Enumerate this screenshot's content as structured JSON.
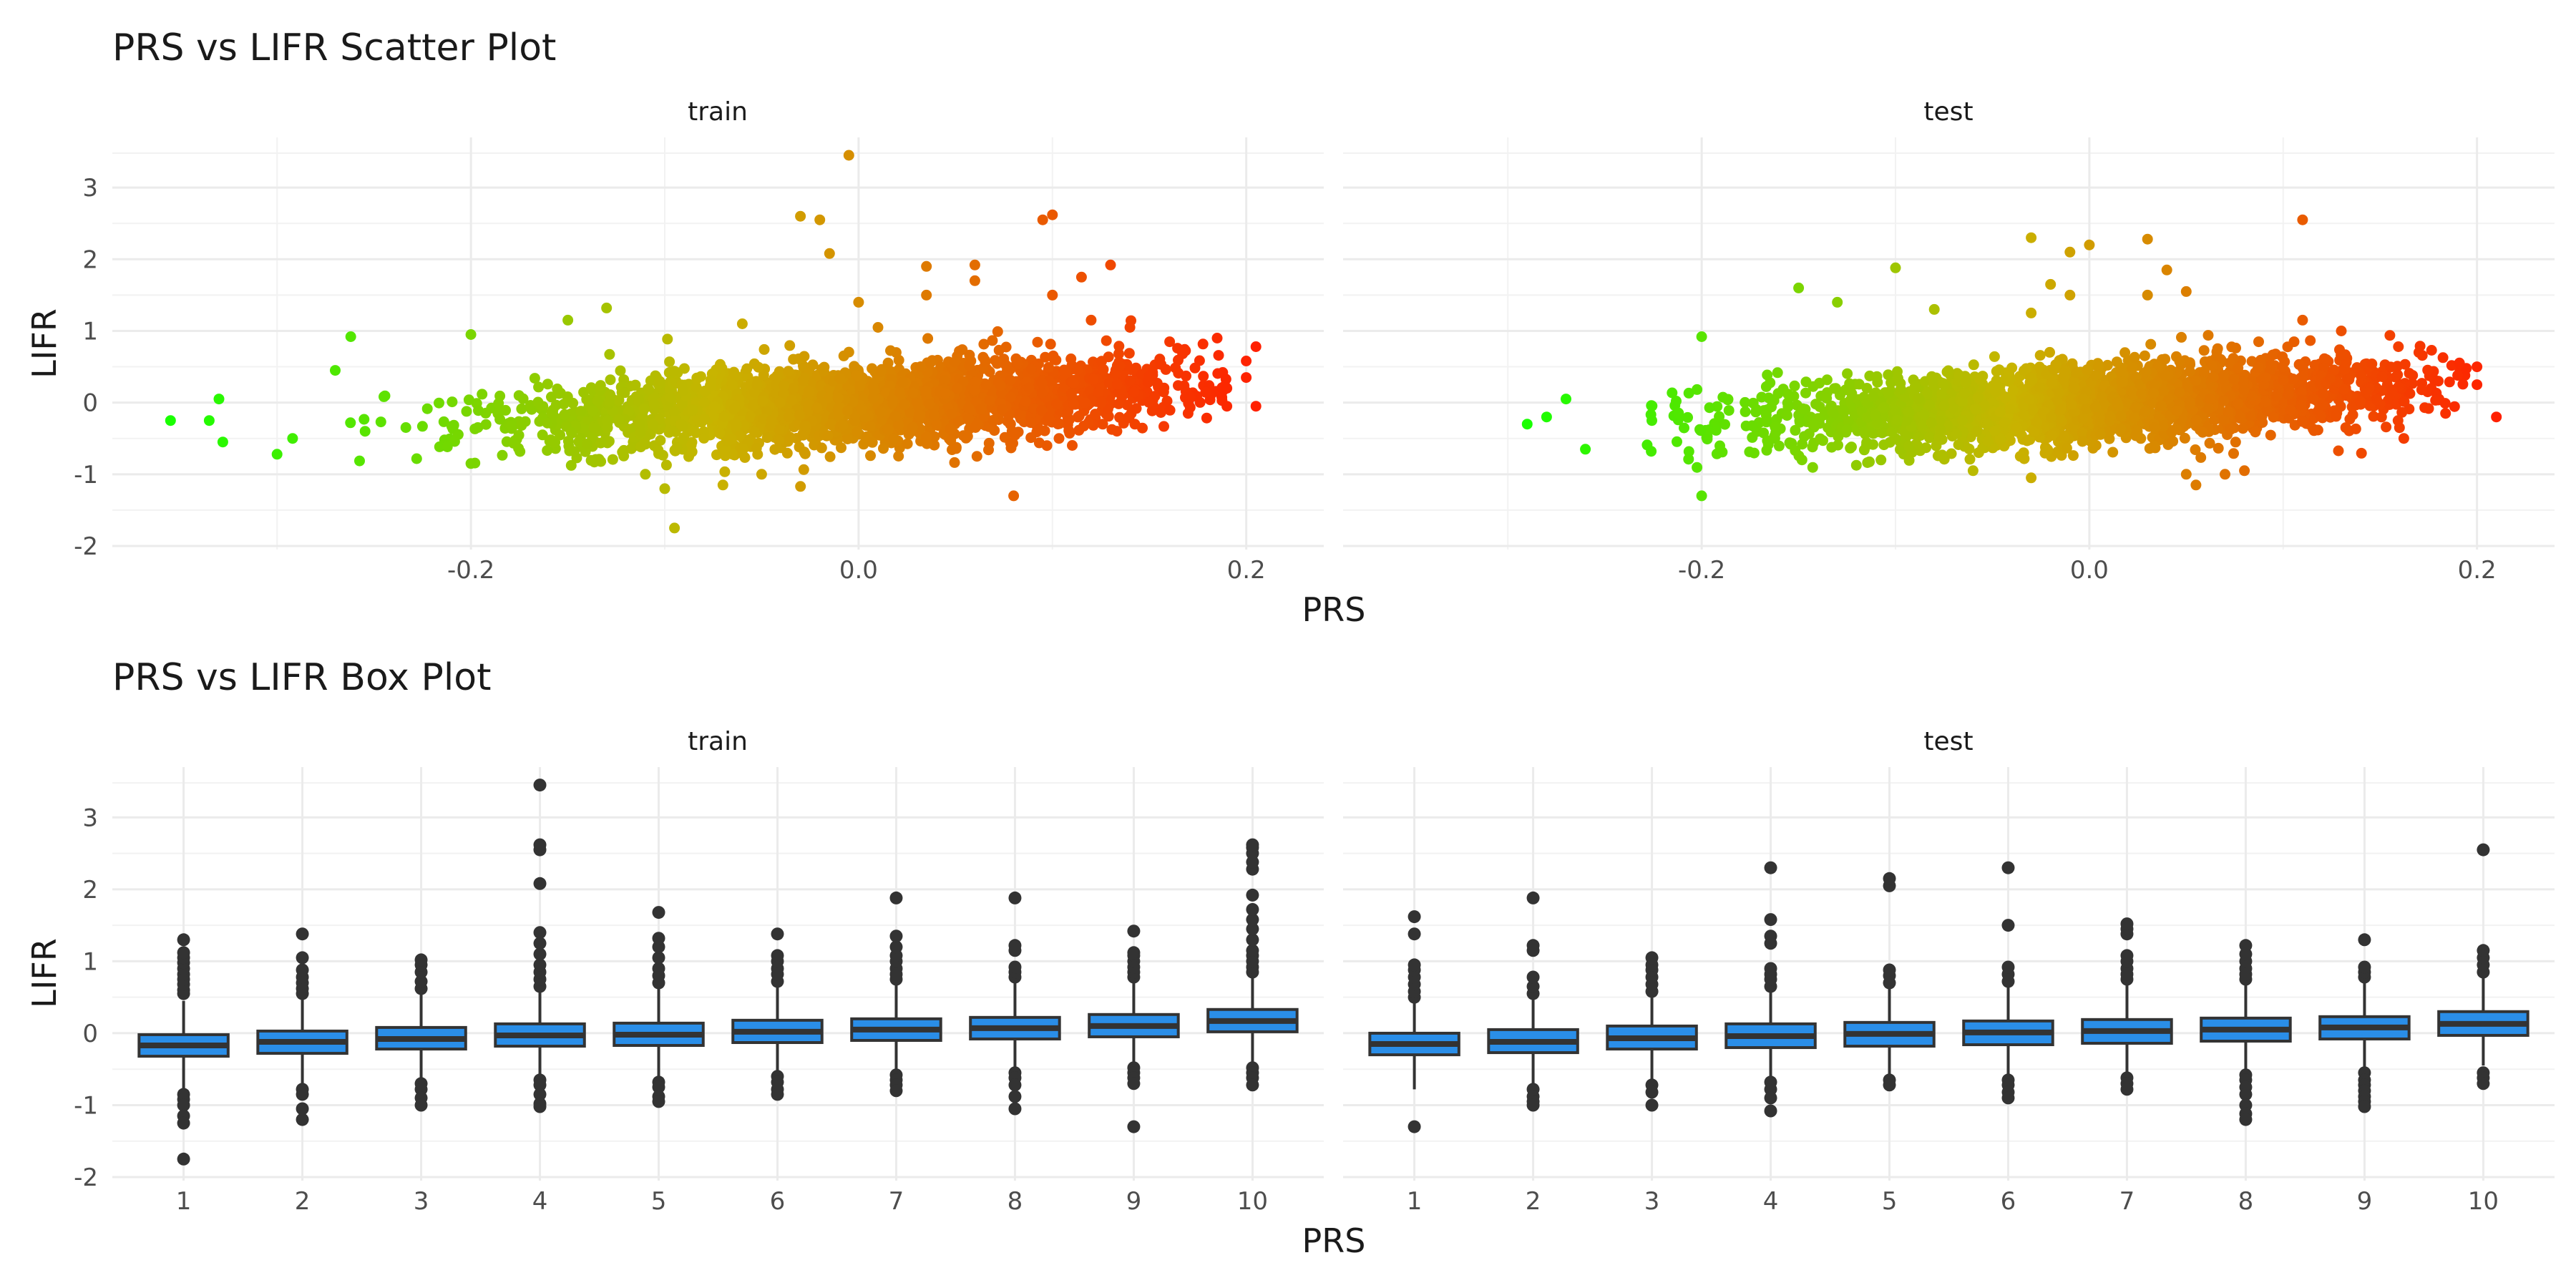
{
  "chart_data": [
    {
      "type": "scatter",
      "title": "PRS vs LIFR Scatter Plot",
      "xlabel": "PRS",
      "ylabel": "LIFR",
      "xlim": [
        -0.385,
        0.24
      ],
      "ylim": [
        -2.05,
        3.7
      ],
      "x_ticks": [
        "-0.2",
        "0.0",
        "0.2"
      ],
      "y_ticks": [
        "-2",
        "-1",
        "0",
        "1",
        "2",
        "3"
      ],
      "color_scale": {
        "low": "#19ff00",
        "mid": "#c8b400",
        "high": "#ff2000"
      },
      "panels": [
        {
          "name": "train",
          "x_range": [
            -0.355,
            0.205
          ],
          "cloud_sd_y": 0.28,
          "slope": 1.3,
          "points": [
            {
              "x": -0.355,
              "y": -0.25
            },
            {
              "x": -0.335,
              "y": -0.25
            },
            {
              "x": -0.33,
              "y": 0.05
            },
            {
              "x": -0.328,
              "y": -0.55
            },
            {
              "x": -0.3,
              "y": -0.72
            },
            {
              "x": -0.292,
              "y": -0.5
            },
            {
              "x": -0.27,
              "y": 0.45
            },
            {
              "x": -0.262,
              "y": 0.92
            },
            {
              "x": -0.2,
              "y": 0.95
            },
            {
              "x": -0.2,
              "y": -0.85
            },
            {
              "x": -0.15,
              "y": 1.15
            },
            {
              "x": -0.13,
              "y": 1.32
            },
            {
              "x": -0.11,
              "y": -1.0
            },
            {
              "x": -0.1,
              "y": -1.2
            },
            {
              "x": -0.095,
              "y": -1.75
            },
            {
              "x": -0.07,
              "y": -1.15
            },
            {
              "x": -0.06,
              "y": 1.1
            },
            {
              "x": -0.05,
              "y": -1.0
            },
            {
              "x": -0.03,
              "y": 2.6
            },
            {
              "x": -0.02,
              "y": 2.55
            },
            {
              "x": -0.015,
              "y": 2.08
            },
            {
              "x": -0.005,
              "y": 3.45
            },
            {
              "x": 0.0,
              "y": 1.4
            },
            {
              "x": 0.01,
              "y": 1.05
            },
            {
              "x": 0.035,
              "y": 1.5
            },
            {
              "x": 0.035,
              "y": 1.9
            },
            {
              "x": 0.06,
              "y": 1.7
            },
            {
              "x": 0.06,
              "y": 1.92
            },
            {
              "x": 0.08,
              "y": -1.3
            },
            {
              "x": 0.095,
              "y": 2.55
            },
            {
              "x": 0.1,
              "y": 2.62
            },
            {
              "x": 0.1,
              "y": 1.5
            },
            {
              "x": 0.115,
              "y": 1.75
            },
            {
              "x": 0.12,
              "y": 1.15
            },
            {
              "x": 0.13,
              "y": 1.92
            },
            {
              "x": 0.14,
              "y": 1.05
            },
            {
              "x": 0.17,
              "y": -0.15
            },
            {
              "x": 0.185,
              "y": 0.9
            },
            {
              "x": 0.19,
              "y": -0.05
            },
            {
              "x": 0.2,
              "y": 0.58
            },
            {
              "x": 0.205,
              "y": 0.78
            },
            {
              "x": 0.2,
              "y": 0.35
            },
            {
              "x": 0.205,
              "y": -0.05
            },
            {
              "x": 0.19,
              "y": 0.2
            }
          ]
        },
        {
          "name": "test",
          "x_range": [
            -0.29,
            0.21
          ],
          "cloud_sd_y": 0.26,
          "slope": 1.3,
          "points": [
            {
              "x": -0.29,
              "y": -0.3
            },
            {
              "x": -0.28,
              "y": -0.2
            },
            {
              "x": -0.27,
              "y": 0.05
            },
            {
              "x": -0.26,
              "y": -0.65
            },
            {
              "x": -0.2,
              "y": 0.92
            },
            {
              "x": -0.2,
              "y": -1.3
            },
            {
              "x": -0.15,
              "y": 1.6
            },
            {
              "x": -0.13,
              "y": 1.4
            },
            {
              "x": -0.1,
              "y": 1.88
            },
            {
              "x": -0.08,
              "y": 1.3
            },
            {
              "x": -0.06,
              "y": -0.95
            },
            {
              "x": -0.03,
              "y": 1.25
            },
            {
              "x": -0.02,
              "y": 1.65
            },
            {
              "x": -0.01,
              "y": 1.5
            },
            {
              "x": -0.03,
              "y": -1.05
            },
            {
              "x": -0.03,
              "y": 2.3
            },
            {
              "x": -0.01,
              "y": 2.1
            },
            {
              "x": 0.0,
              "y": 2.2
            },
            {
              "x": 0.03,
              "y": 2.28
            },
            {
              "x": 0.04,
              "y": 1.85
            },
            {
              "x": 0.03,
              "y": 1.5
            },
            {
              "x": 0.05,
              "y": 1.55
            },
            {
              "x": 0.055,
              "y": -1.15
            },
            {
              "x": 0.05,
              "y": -1.0
            },
            {
              "x": 0.07,
              "y": -1.0
            },
            {
              "x": 0.08,
              "y": -0.95
            },
            {
              "x": 0.11,
              "y": 2.55
            },
            {
              "x": 0.11,
              "y": 1.15
            },
            {
              "x": 0.13,
              "y": 1.0
            },
            {
              "x": 0.16,
              "y": -0.35
            },
            {
              "x": 0.17,
              "y": 0.7
            },
            {
              "x": 0.18,
              "y": 0.3
            },
            {
              "x": 0.19,
              "y": 0.38
            },
            {
              "x": 0.2,
              "y": 0.5
            },
            {
              "x": 0.2,
              "y": 0.25
            },
            {
              "x": 0.21,
              "y": -0.2
            }
          ]
        }
      ]
    },
    {
      "type": "box",
      "title": "PRS vs LIFR Box Plot",
      "xlabel": "PRS",
      "ylabel": "LIFR",
      "ylim": [
        -2.05,
        3.7
      ],
      "categories": [
        "1",
        "2",
        "3",
        "4",
        "5",
        "6",
        "7",
        "8",
        "9",
        "10"
      ],
      "y_ticks": [
        "-2",
        "-1",
        "0",
        "1",
        "2",
        "3"
      ],
      "box_color": "#2a8ee8",
      "panels": [
        {
          "name": "train",
          "boxes": [
            {
              "q1": -0.32,
              "median": -0.17,
              "q3": -0.02,
              "whisker_low": -0.78,
              "whisker_high": 0.45,
              "outliers": [
                0.55,
                0.6,
                0.68,
                0.75,
                0.82,
                0.9,
                0.98,
                1.05,
                1.12,
                1.3,
                -0.85,
                -0.92,
                -1.0,
                -1.15,
                -1.25,
                -1.75
              ]
            },
            {
              "q1": -0.28,
              "median": -0.12,
              "q3": 0.03,
              "whisker_low": -0.75,
              "whisker_high": 0.5,
              "outliers": [
                0.55,
                0.62,
                0.7,
                0.78,
                0.88,
                1.05,
                1.38,
                -0.78,
                -0.85,
                -1.05,
                -1.2
              ]
            },
            {
              "q1": -0.22,
              "median": -0.08,
              "q3": 0.08,
              "whisker_low": -0.65,
              "whisker_high": 0.55,
              "outliers": [
                0.62,
                0.72,
                0.85,
                0.95,
                1.02,
                -0.7,
                -0.78,
                -0.9,
                -1.0
              ]
            },
            {
              "q1": -0.18,
              "median": -0.03,
              "q3": 0.13,
              "whisker_low": -0.62,
              "whisker_high": 0.6,
              "outliers": [
                0.65,
                0.75,
                0.85,
                0.95,
                1.1,
                1.25,
                1.4,
                2.08,
                2.55,
                2.62,
                3.45,
                -0.65,
                -0.72,
                -0.85,
                -0.98,
                -1.02
              ]
            },
            {
              "q1": -0.17,
              "median": -0.02,
              "q3": 0.14,
              "whisker_low": -0.6,
              "whisker_high": 0.62,
              "outliers": [
                0.7,
                0.8,
                0.9,
                1.05,
                1.2,
                1.32,
                1.68,
                -0.68,
                -0.75,
                -0.88,
                -0.95
              ]
            },
            {
              "q1": -0.13,
              "median": 0.02,
              "q3": 0.18,
              "whisker_low": -0.58,
              "whisker_high": 0.66,
              "outliers": [
                0.72,
                0.82,
                0.9,
                1.0,
                1.08,
                1.38,
                -0.6,
                -0.68,
                -0.78,
                -0.85
              ]
            },
            {
              "q1": -0.1,
              "median": 0.05,
              "q3": 0.2,
              "whisker_low": -0.55,
              "whisker_high": 0.68,
              "outliers": [
                0.75,
                0.82,
                0.9,
                1.0,
                1.08,
                1.2,
                1.35,
                1.88,
                -0.58,
                -0.65,
                -0.72,
                -0.8
              ]
            },
            {
              "q1": -0.08,
              "median": 0.07,
              "q3": 0.22,
              "whisker_low": -0.52,
              "whisker_high": 0.7,
              "outliers": [
                0.78,
                0.85,
                0.92,
                1.15,
                1.22,
                1.88,
                -0.55,
                -0.62,
                -0.72,
                -0.88,
                -1.05
              ]
            },
            {
              "q1": -0.05,
              "median": 0.1,
              "q3": 0.26,
              "whisker_low": -0.45,
              "whisker_high": 0.72,
              "outliers": [
                0.78,
                0.85,
                0.92,
                1.0,
                1.08,
                1.12,
                1.42,
                -0.48,
                -0.55,
                -0.62,
                -0.7,
                -1.3
              ]
            },
            {
              "q1": 0.02,
              "median": 0.17,
              "q3": 0.33,
              "whisker_low": -0.4,
              "whisker_high": 0.78,
              "outliers": [
                0.85,
                0.92,
                1.0,
                1.08,
                1.15,
                1.3,
                1.45,
                1.58,
                1.72,
                1.92,
                2.28,
                2.38,
                2.5,
                2.58,
                2.62,
                -0.48,
                -0.55,
                -0.62,
                -0.72
              ]
            }
          ]
        },
        {
          "name": "test",
          "boxes": [
            {
              "q1": -0.3,
              "median": -0.15,
              "q3": 0.0,
              "whisker_low": -0.78,
              "whisker_high": 0.42,
              "outliers": [
                0.5,
                0.58,
                0.68,
                0.78,
                0.88,
                0.95,
                1.38,
                1.62,
                -1.3
              ]
            },
            {
              "q1": -0.27,
              "median": -0.12,
              "q3": 0.05,
              "whisker_low": -0.72,
              "whisker_high": 0.48,
              "outliers": [
                0.55,
                0.65,
                0.78,
                1.15,
                1.22,
                1.88,
                -0.78,
                -0.88,
                -0.95,
                -1.0
              ]
            },
            {
              "q1": -0.22,
              "median": -0.07,
              "q3": 0.1,
              "whisker_low": -0.68,
              "whisker_high": 0.52,
              "outliers": [
                0.58,
                0.68,
                0.78,
                0.88,
                0.95,
                1.05,
                -0.72,
                -0.82,
                -1.0
              ]
            },
            {
              "q1": -0.2,
              "median": -0.04,
              "q3": 0.13,
              "whisker_low": -0.65,
              "whisker_high": 0.58,
              "outliers": [
                0.65,
                0.75,
                0.82,
                0.9,
                1.25,
                1.35,
                1.58,
                2.3,
                -0.68,
                -0.78,
                -0.9,
                -1.08
              ]
            },
            {
              "q1": -0.18,
              "median": -0.01,
              "q3": 0.15,
              "whisker_low": -0.62,
              "whisker_high": 0.62,
              "outliers": [
                0.7,
                0.8,
                0.88,
                2.05,
                2.15,
                -0.65,
                -0.72
              ]
            },
            {
              "q1": -0.16,
              "median": 0.01,
              "q3": 0.17,
              "whisker_low": -0.6,
              "whisker_high": 0.65,
              "outliers": [
                0.72,
                0.82,
                0.92,
                1.5,
                2.3,
                -0.65,
                -0.72,
                -0.82,
                -0.9
              ]
            },
            {
              "q1": -0.14,
              "median": 0.03,
              "q3": 0.19,
              "whisker_low": -0.58,
              "whisker_high": 0.68,
              "outliers": [
                0.75,
                0.82,
                0.9,
                1.0,
                1.08,
                1.38,
                1.45,
                1.52,
                -0.62,
                -0.7,
                -0.78
              ]
            },
            {
              "q1": -0.11,
              "median": 0.05,
              "q3": 0.21,
              "whisker_low": -0.55,
              "whisker_high": 0.7,
              "outliers": [
                0.75,
                0.82,
                0.9,
                1.0,
                1.1,
                1.22,
                -0.58,
                -0.65,
                -0.75,
                -0.85,
                -1.0,
                -1.12,
                -1.2
              ]
            },
            {
              "q1": -0.08,
              "median": 0.08,
              "q3": 0.23,
              "whisker_low": -0.52,
              "whisker_high": 0.72,
              "outliers": [
                0.78,
                0.85,
                0.92,
                1.3,
                -0.55,
                -0.65,
                -0.72,
                -0.8,
                -0.88,
                -0.95,
                -1.02
              ]
            },
            {
              "q1": -0.03,
              "median": 0.13,
              "q3": 0.3,
              "whisker_low": -0.45,
              "whisker_high": 0.78,
              "outliers": [
                0.85,
                0.95,
                1.05,
                1.15,
                2.55,
                -0.55,
                -0.62,
                -0.7
              ]
            }
          ]
        }
      ]
    }
  ]
}
